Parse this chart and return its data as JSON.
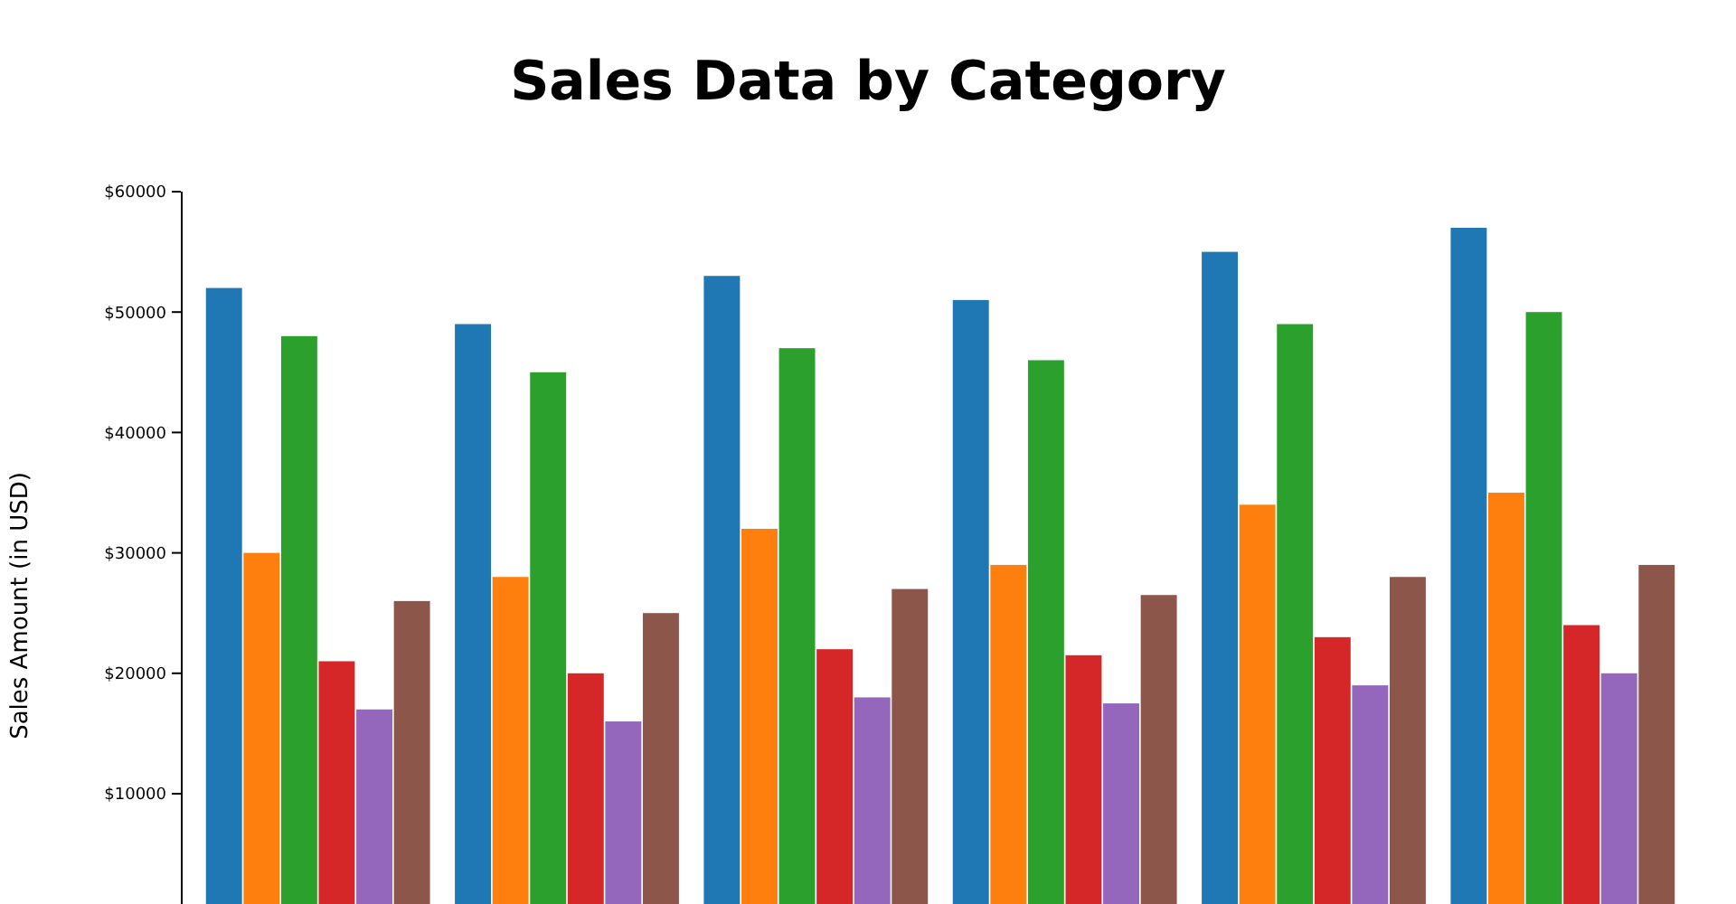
{
  "chart_data": {
    "type": "bar",
    "title": "Sales Data by Category",
    "ylabel": "Sales Amount (in USD)",
    "categories": [
      null,
      null,
      null,
      null,
      null,
      null
    ],
    "series": [
      {
        "color": "#1f77b4",
        "values": [
          52000,
          49000,
          53000,
          51000,
          55000,
          57000
        ]
      },
      {
        "color": "#ff7f0e",
        "values": [
          30000,
          28000,
          32000,
          29000,
          34000,
          35000
        ]
      },
      {
        "color": "#2ca02c",
        "values": [
          48000,
          45000,
          47000,
          46000,
          49000,
          50000
        ]
      },
      {
        "color": "#d62728",
        "values": [
          21000,
          20000,
          22000,
          21500,
          23000,
          24000
        ]
      },
      {
        "color": "#9467bd",
        "values": [
          17000,
          16000,
          18000,
          17500,
          19000,
          20000
        ]
      },
      {
        "color": "#8c564b",
        "values": [
          26000,
          25000,
          27000,
          26500,
          28000,
          29000
        ]
      }
    ],
    "ylim": [
      0,
      60000
    ],
    "yticks": [
      {
        "value": 10000,
        "label": "$10000"
      },
      {
        "value": 20000,
        "label": "$20000"
      },
      {
        "value": 30000,
        "label": "$30000"
      },
      {
        "value": 40000,
        "label": "$40000"
      },
      {
        "value": 50000,
        "label": "$50000"
      },
      {
        "value": 60000,
        "label": "$60000"
      }
    ],
    "tick_labels": "y"
  }
}
